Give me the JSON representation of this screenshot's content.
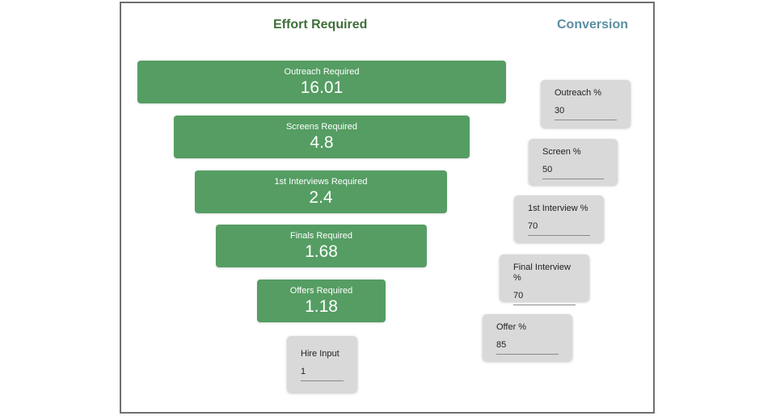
{
  "headers": {
    "effort": "Effort Required",
    "conversion": "Conversion"
  },
  "funnel": [
    {
      "label": "Outreach Required",
      "value": "16.01"
    },
    {
      "label": "Screens Required",
      "value": "4.8"
    },
    {
      "label": "1st Interviews Required",
      "value": "2.4"
    },
    {
      "label": "Finals Required",
      "value": "1.68"
    },
    {
      "label": "Offers Required",
      "value": "1.18"
    }
  ],
  "hire_input": {
    "label": "Hire Input",
    "value": "1"
  },
  "conversion_inputs": [
    {
      "label": "Outreach %",
      "value": "30"
    },
    {
      "label": "Screen %",
      "value": "50"
    },
    {
      "label": "1st Interview %",
      "value": "70"
    },
    {
      "label": "Final Interview %",
      "value": "70"
    },
    {
      "label": "Offer %",
      "value": "85"
    }
  ],
  "colors": {
    "bar": "#559d63",
    "effort_heading": "#3f6f3a",
    "conversion_heading": "#5b8ea2",
    "card": "#d9d9d9"
  }
}
